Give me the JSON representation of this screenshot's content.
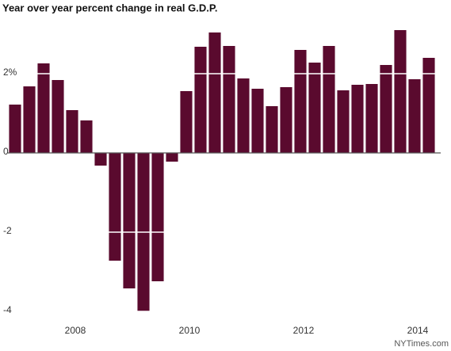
{
  "chart_data": {
    "type": "bar",
    "title": "Year over year percent change in real G.D.P.",
    "categories": [
      null,
      null,
      null,
      null,
      "2008",
      null,
      null,
      null,
      null,
      null,
      null,
      null,
      "2010",
      null,
      null,
      null,
      null,
      null,
      null,
      null,
      "2012",
      null,
      null,
      null,
      null,
      null,
      null,
      null,
      "2014",
      null
    ],
    "values": [
      1.22,
      1.68,
      2.26,
      1.84,
      1.08,
      0.82,
      -0.32,
      -2.72,
      -3.42,
      -4.0,
      -3.24,
      -0.22,
      1.56,
      2.68,
      3.04,
      2.7,
      1.88,
      1.62,
      1.18,
      1.66,
      2.6,
      2.28,
      2.7,
      1.58,
      1.72,
      1.74,
      2.22,
      3.1,
      1.86,
      2.4
    ],
    "color": "#5a0a2e",
    "ylim": [
      -4.1,
      3.5
    ],
    "yticks": [
      {
        "value": 2,
        "label": "2%"
      },
      0,
      -2,
      -4
    ],
    "grid": true,
    "source": "NYTimes.com"
  }
}
